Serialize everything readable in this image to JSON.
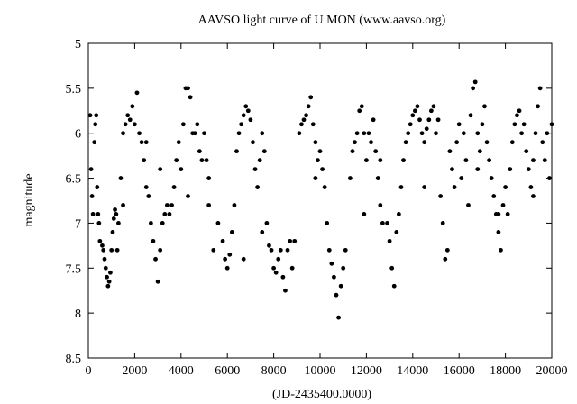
{
  "chart_data": {
    "type": "scatter",
    "title": "AAVSO light curve of U MON (www.aavso.org)",
    "xlabel": "(JD-2435400.0000)",
    "ylabel": "magnitude",
    "xlim": [
      0,
      20000
    ],
    "ylim": [
      8.5,
      5
    ],
    "y_inverted": true,
    "grid": false,
    "x_ticks": [
      0,
      2000,
      4000,
      6000,
      8000,
      10000,
      12000,
      14000,
      16000,
      18000,
      20000
    ],
    "x_tick_labels": [
      "0",
      "2000",
      "4000",
      "6000",
      "8000",
      "10000",
      "12000",
      "14000",
      "16000",
      "18000",
      "20000"
    ],
    "y_ticks": [
      5,
      5.5,
      6,
      6.5,
      7,
      7.5,
      8,
      8.5
    ],
    "y_tick_labels": [
      "5",
      "5.5",
      "6",
      "6.5",
      "7",
      "7.5",
      "8",
      "8.5"
    ],
    "marker_color": "#000000",
    "series": [
      {
        "x": [
          80,
          120,
          160,
          200,
          260,
          300,
          340,
          380,
          420,
          460,
          500,
          600,
          650,
          700,
          750,
          800,
          850,
          900,
          950,
          1000,
          1050,
          1100,
          1150,
          1200,
          1250,
          1300,
          1400,
          1500,
          1600,
          1700,
          1800,
          1900,
          2000,
          2100,
          2200,
          2300,
          2400,
          2500,
          2600,
          2700,
          2800,
          2900,
          3000,
          3100,
          3200,
          3300,
          3400,
          3500,
          3600,
          3700,
          3800,
          3900,
          4000,
          4100,
          4200,
          4300,
          4400,
          4500,
          4600,
          4700,
          4800,
          4900,
          5000,
          5100,
          5200,
          5400,
          5600,
          5800,
          5900,
          6000,
          6100,
          6200,
          6300,
          6400,
          6500,
          6600,
          6700,
          6800,
          6900,
          7000,
          7100,
          7200,
          7300,
          7400,
          7500,
          7600,
          7700,
          7800,
          7900,
          8000,
          8100,
          8200,
          8300,
          8400,
          8500,
          8600,
          8700,
          8800,
          8900,
          9100,
          9200,
          9300,
          9400,
          9500,
          9600,
          9700,
          9800,
          9900,
          10000,
          10100,
          10200,
          10300,
          10400,
          10500,
          10600,
          10700,
          10800,
          10900,
          11000,
          11100,
          11300,
          11400,
          11500,
          11600,
          11700,
          11800,
          11900,
          12000,
          12100,
          12200,
          12300,
          12400,
          12500,
          12600,
          12700,
          12900,
          13000,
          13100,
          13200,
          13300,
          13400,
          13500,
          13600,
          13700,
          13800,
          13900,
          14000,
          14100,
          14200,
          14300,
          14400,
          14500,
          14600,
          14700,
          14800,
          14900,
          15000,
          15100,
          15200,
          15300,
          15400,
          15500,
          15600,
          15700,
          15800,
          15900,
          16000,
          16100,
          16200,
          16300,
          16400,
          16500,
          16600,
          16700,
          16800,
          16900,
          17000,
          17100,
          17200,
          17300,
          17400,
          17500,
          17600,
          17700,
          17800,
          17900,
          18000,
          18100,
          18200,
          18300,
          18400,
          18500,
          18600,
          18700,
          18800,
          18900,
          19000,
          19100,
          19200,
          19300,
          19400,
          19500,
          19600,
          19700,
          19800,
          19900,
          20000,
          1500,
          2500,
          3100,
          4300,
          5200,
          6700,
          7500,
          9800,
          11900,
          12600,
          14500,
          16800,
          17700,
          19200
        ],
        "y": [
          5.8,
          6.4,
          6.7,
          6.9,
          6.1,
          5.9,
          5.8,
          6.6,
          6.9,
          7.0,
          7.2,
          7.25,
          7.3,
          7.4,
          7.5,
          7.6,
          7.7,
          7.65,
          7.55,
          7.3,
          7.1,
          6.95,
          6.85,
          6.9,
          7.3,
          7.0,
          6.5,
          6.0,
          5.9,
          5.8,
          5.85,
          5.7,
          5.9,
          5.55,
          6.0,
          6.1,
          6.3,
          6.1,
          6.7,
          7.0,
          7.2,
          7.4,
          7.65,
          7.3,
          7.0,
          6.9,
          6.8,
          6.9,
          6.8,
          6.6,
          6.3,
          6.1,
          6.4,
          5.9,
          5.5,
          5.5,
          5.6,
          6.0,
          6.0,
          5.9,
          6.2,
          6.3,
          6.0,
          6.3,
          6.5,
          7.3,
          7.0,
          7.2,
          7.4,
          7.5,
          7.35,
          7.1,
          6.8,
          6.2,
          6.0,
          5.9,
          5.8,
          5.7,
          5.75,
          5.85,
          6.1,
          6.4,
          6.6,
          6.3,
          6.0,
          6.2,
          7.0,
          7.25,
          7.3,
          7.5,
          7.55,
          7.4,
          7.3,
          7.6,
          7.75,
          7.3,
          7.2,
          7.5,
          7.2,
          6.0,
          5.9,
          5.85,
          5.8,
          5.7,
          5.6,
          5.9,
          6.1,
          6.3,
          6.2,
          6.4,
          6.6,
          7.0,
          7.3,
          7.45,
          7.6,
          7.8,
          8.05,
          7.7,
          7.5,
          7.3,
          6.5,
          6.2,
          6.1,
          6.0,
          5.75,
          5.7,
          6.0,
          6.3,
          6.0,
          6.1,
          5.85,
          6.2,
          6.5,
          6.8,
          7.0,
          7.0,
          7.2,
          7.5,
          7.7,
          7.1,
          6.9,
          6.6,
          6.3,
          6.1,
          6.0,
          5.9,
          5.8,
          5.75,
          5.7,
          5.85,
          6.0,
          6.1,
          5.95,
          5.85,
          5.75,
          5.7,
          6.0,
          5.85,
          6.7,
          7.0,
          7.4,
          7.3,
          6.2,
          6.4,
          6.6,
          6.1,
          5.9,
          6.5,
          6.0,
          6.3,
          6.8,
          5.8,
          5.5,
          5.43,
          6.0,
          6.2,
          5.9,
          5.7,
          6.1,
          6.3,
          6.5,
          6.7,
          6.9,
          7.1,
          7.3,
          6.8,
          6.6,
          6.9,
          6.4,
          6.1,
          5.9,
          5.8,
          5.75,
          6.0,
          5.9,
          6.2,
          6.4,
          6.6,
          6.3,
          6.0,
          5.7,
          5.5,
          6.1,
          6.3,
          6.0,
          6.5,
          5.9,
          6.8,
          6.6,
          6.4,
          6.7,
          6.8,
          7.4,
          7.1,
          6.5,
          6.9,
          6.3,
          6.6,
          6.4,
          6.9,
          6.7
        ]
      }
    ]
  }
}
